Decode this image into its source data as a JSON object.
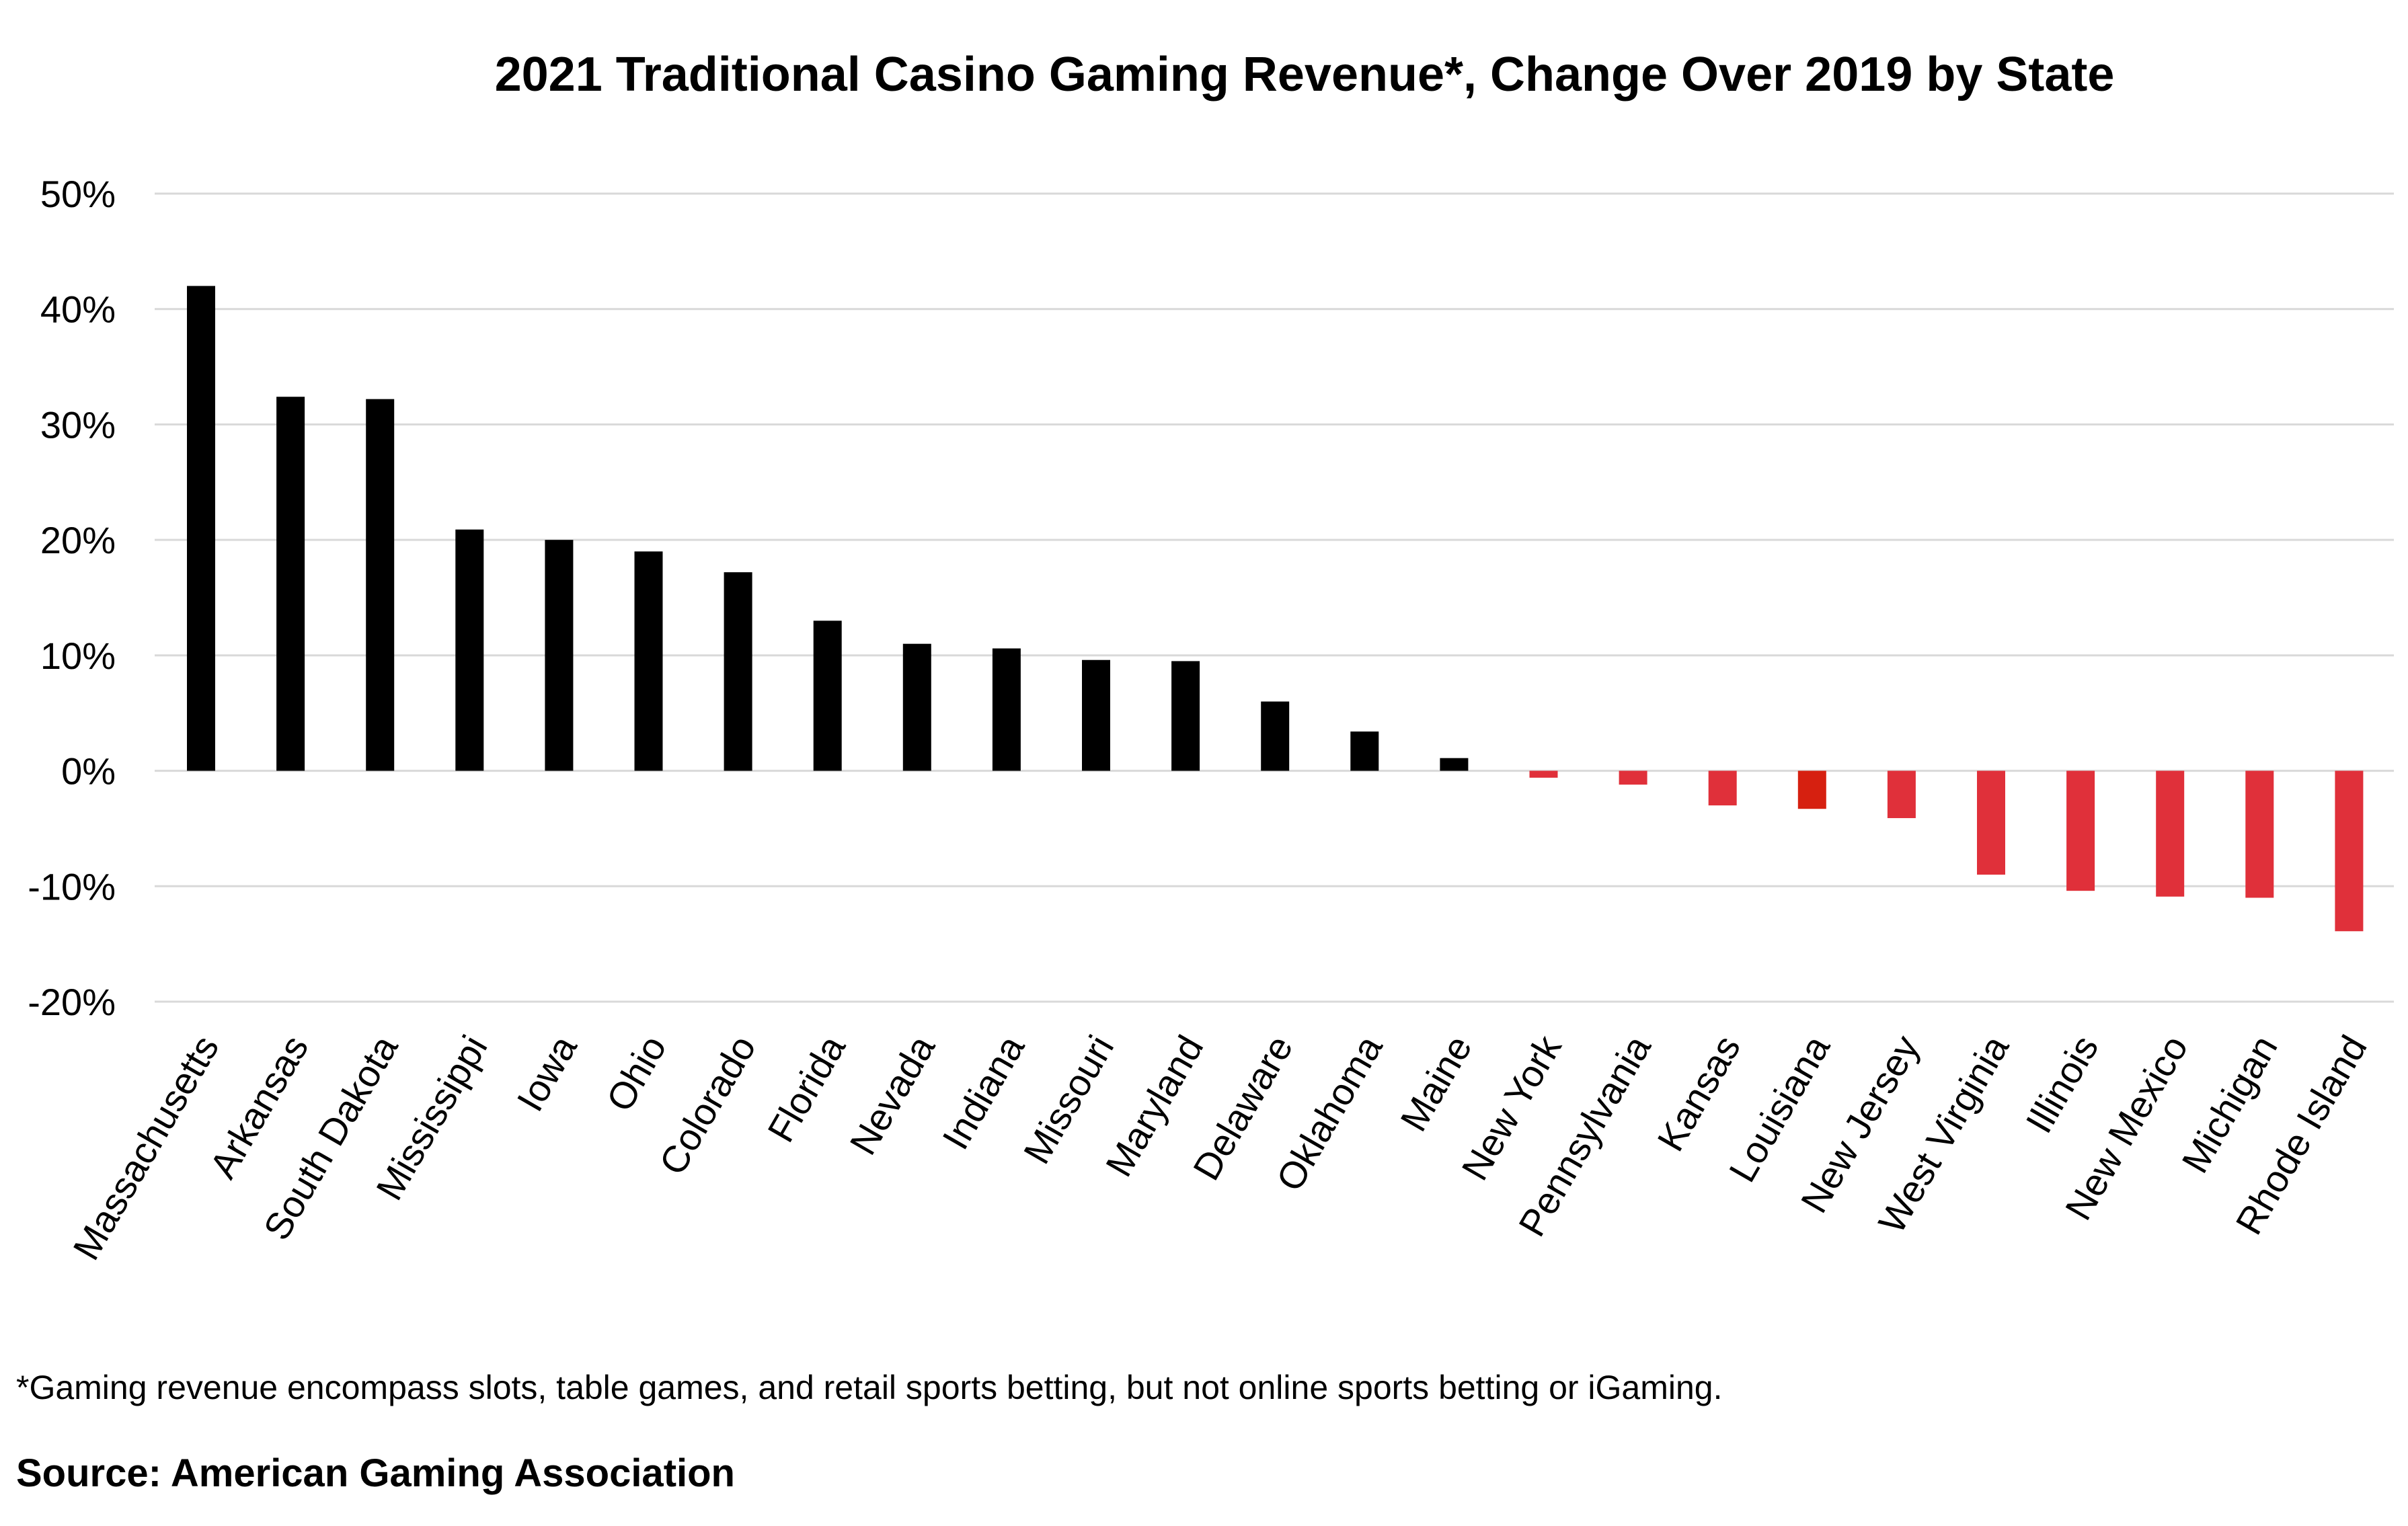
{
  "chart_data": {
    "type": "bar",
    "title": "2021 Traditional Casino Gaming Revenue*, Change Over 2019 by State",
    "xlabel": "",
    "ylabel": "",
    "ylim": [
      -20,
      50
    ],
    "yticks": [
      50,
      40,
      30,
      20,
      10,
      0,
      -10,
      -20
    ],
    "ytick_labels": [
      "50%",
      "40%",
      "30%",
      "20%",
      "10%",
      "0%",
      "-10%",
      "-20%"
    ],
    "grid": true,
    "legend": "none",
    "categories": [
      "Massachusetts",
      "Arkansas",
      "South Dakota",
      "Mississippi",
      "Iowa",
      "Ohio",
      "Colorado",
      "Florida",
      "Nevada",
      "Indiana",
      "Missouri",
      "Maryland",
      "Delaware",
      "Oklahoma",
      "Maine",
      "New York",
      "Pennsylvania",
      "Kansas",
      "Louisiana",
      "New Jersey",
      "West Virginia",
      "Illinois",
      "New Mexico",
      "Michigan",
      "Rhode Island"
    ],
    "values": [
      42.0,
      32.4,
      32.2,
      20.9,
      20.0,
      19.0,
      17.2,
      13.0,
      11.0,
      10.6,
      9.6,
      9.5,
      6.0,
      3.4,
      1.1,
      -0.6,
      -1.2,
      -3.0,
      -3.3,
      -4.1,
      -9.0,
      -10.4,
      -10.9,
      -11.0,
      -13.9
    ],
    "colors": {
      "positive": "#000000",
      "negative": "#e0303a",
      "highlight": "#d62010",
      "grid": "#d9d9d9"
    },
    "highlight_categories": [
      "Louisiana"
    ]
  },
  "footnote": "*Gaming revenue encompass slots, table games, and retail sports betting, but not online sports betting or iGaming.",
  "source": "Source: American Gaming Association"
}
